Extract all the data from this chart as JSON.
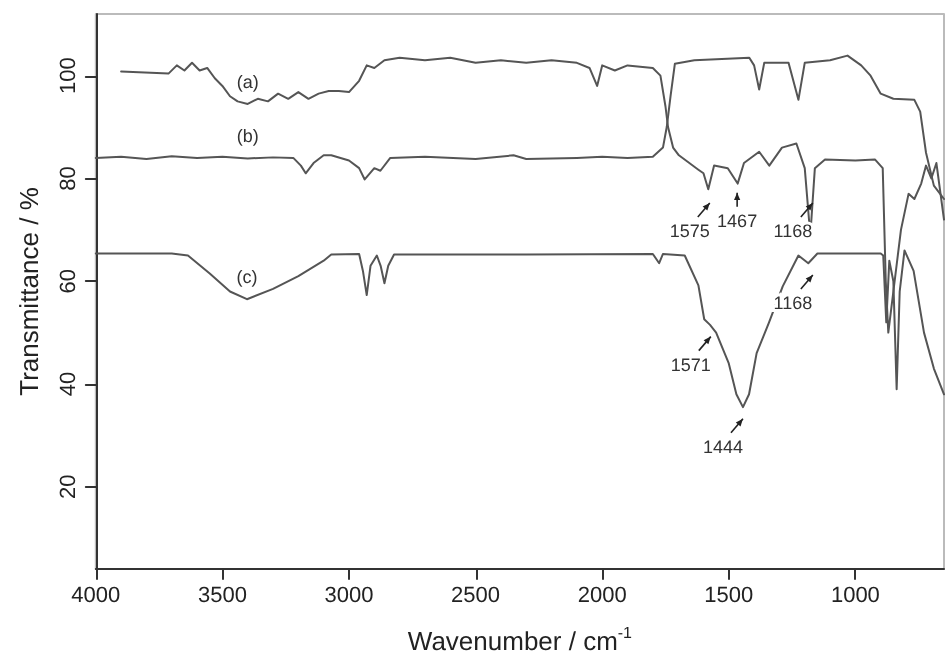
{
  "chart_data": {
    "type": "line",
    "xlabel": "Wavenumber / cm$^{-1}$",
    "ylabel": "Transmittance / %",
    "xlim": [
      4000,
      650
    ],
    "ylim": [
      4,
      112
    ],
    "xticks": [
      4000,
      3500,
      3000,
      2500,
      2000,
      1500,
      1000
    ],
    "yticks": [
      20,
      40,
      60,
      80,
      100
    ],
    "grid": false,
    "legend": false,
    "marker": "none",
    "line_style": "solid",
    "series": [
      {
        "name": "(a)",
        "color": "#555555",
        "x": [
          3900,
          3713,
          3680,
          3650,
          3620,
          3590,
          3560,
          3530,
          3500,
          3470,
          3440,
          3400,
          3360,
          3320,
          3280,
          3240,
          3200,
          3160,
          3120,
          3080,
          3040,
          3000,
          2960,
          2930,
          2900,
          2860,
          2800,
          2700,
          2600,
          2500,
          2400,
          2300,
          2200,
          2100,
          2050,
          2020,
          2000,
          1950,
          1900,
          1800,
          1770,
          1750,
          1740,
          1720,
          1697,
          1620,
          1600,
          1581,
          1558,
          1504,
          1465,
          1440,
          1380,
          1340,
          1290,
          1233,
          1200,
          1178,
          1160,
          1120,
          1000,
          923,
          892,
          880,
          870,
          850,
          820,
          790,
          767,
          740,
          721,
          700,
          680,
          650
        ],
        "values": [
          100.8,
          100.4,
          102,
          101,
          102.5,
          101,
          101.5,
          99.5,
          98,
          96,
          95,
          94.5,
          95.5,
          95,
          96.5,
          95.5,
          96.8,
          95.5,
          96.5,
          97,
          97,
          96.8,
          99,
          102,
          101.5,
          103,
          103.5,
          103,
          103.5,
          102.5,
          103,
          102.5,
          103,
          102.5,
          101.5,
          98,
          102,
          101,
          102,
          101.5,
          100,
          94,
          90,
          86,
          84.5,
          81.7,
          81,
          77.9,
          82.5,
          82,
          79,
          83,
          85.2,
          82.5,
          86,
          86.8,
          82,
          68.9,
          82,
          83.7,
          83.5,
          83.7,
          82,
          60,
          50,
          58,
          70,
          77,
          76,
          79,
          82.5,
          80,
          83,
          72
        ]
      },
      {
        "name": "(b)",
        "color": "#555555",
        "x": [
          4000,
          3900,
          3800,
          3700,
          3600,
          3500,
          3400,
          3300,
          3220,
          3190,
          3171,
          3140,
          3100,
          3070,
          3000,
          2960,
          2938,
          2900,
          2876,
          2837,
          2700,
          2500,
          2350,
          2300,
          2100,
          2000,
          1900,
          1800,
          1760,
          1745,
          1730,
          1713,
          1636,
          1419,
          1400,
          1380,
          1360,
          1300,
          1264,
          1225,
          1200,
          1100,
          1031,
          977,
          940,
          900,
          850,
          767,
          744,
          721,
          690,
          650
        ],
        "values": [
          84,
          84.2,
          83.8,
          84.3,
          84,
          84.2,
          83.9,
          84.1,
          84,
          82.5,
          81,
          83,
          84.5,
          84.5,
          83.5,
          82,
          79.8,
          82,
          81.5,
          84,
          84.2,
          83.8,
          84.5,
          83.8,
          84,
          84.2,
          84,
          84.2,
          86,
          90,
          96,
          102.3,
          103,
          103.5,
          102,
          97.3,
          102.5,
          102.5,
          102.5,
          95.3,
          102.5,
          103,
          103.9,
          102,
          100,
          96.5,
          95.5,
          95.3,
          93,
          85,
          78.6,
          76
        ]
      },
      {
        "name": "(c)",
        "color": "#555555",
        "x": [
          4000,
          3700,
          3636,
          3550,
          3470,
          3403,
          3300,
          3200,
          3100,
          3070,
          2960,
          2945,
          2930,
          2915,
          2890,
          2875,
          2860,
          2845,
          2822,
          2300,
          1800,
          1775,
          1760,
          1674,
          1620,
          1597,
          1574,
          1550,
          1500,
          1470,
          1444,
          1420,
          1390,
          1341,
          1287,
          1225,
          1186,
          1150,
          1000,
          900,
          890,
          878,
          866,
          850,
          837,
          825,
          806,
          770,
          729,
          690,
          650
        ],
        "values": [
          65.4,
          65.4,
          65,
          61.5,
          58,
          56.5,
          58.5,
          61,
          64,
          65.2,
          65.3,
          62,
          57.3,
          63,
          65,
          63,
          59.6,
          63,
          65.2,
          65.2,
          65.3,
          63.5,
          65.3,
          65,
          59.2,
          52.6,
          51.5,
          50,
          44,
          38,
          35.5,
          38,
          46,
          52,
          59,
          65,
          63.5,
          65.4,
          65.4,
          65.4,
          65,
          52,
          64,
          60,
          39,
          58,
          66,
          62,
          50,
          43,
          38
        ]
      }
    ],
    "annotations": [
      {
        "text": "1575",
        "x": 1575,
        "y": 76
      },
      {
        "text": "1467",
        "x": 1467,
        "y": 78
      },
      {
        "text": "1168",
        "x": 1168,
        "y": 76
      },
      {
        "text": "1571",
        "x": 1571,
        "y": 50
      },
      {
        "text": "1444",
        "x": 1444,
        "y": 34
      },
      {
        "text": "1168",
        "x": 1168,
        "y": 62
      }
    ]
  }
}
